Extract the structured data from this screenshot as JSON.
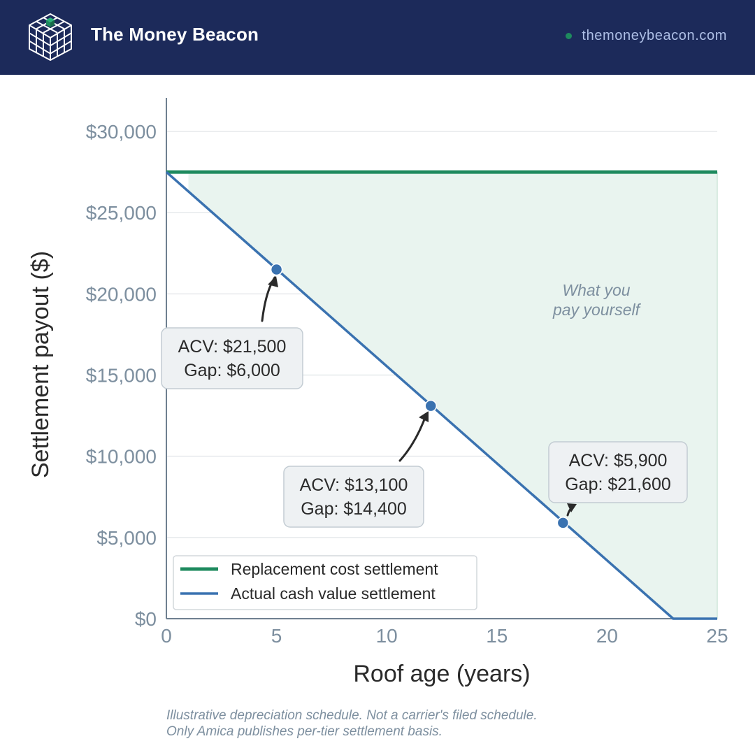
{
  "header": {
    "brand": "The Money Beacon",
    "site": "themoneybeacon.com",
    "background_color": "#1c2a5a",
    "accent_color": "#1e8a5e",
    "logo_icon": "isometric-cube-grid-icon"
  },
  "chart_data": {
    "type": "line",
    "xlabel": "Roof age (years)",
    "ylabel": "Settlement payout ($)",
    "xlim": [
      0,
      25
    ],
    "ylim": [
      0,
      32000
    ],
    "x_ticks": [
      0,
      5,
      10,
      15,
      20,
      25
    ],
    "x_tick_labels": [
      "0",
      "5",
      "10",
      "15",
      "20",
      "25"
    ],
    "y_ticks": [
      0,
      5000,
      10000,
      15000,
      20000,
      25000,
      30000
    ],
    "y_tick_labels": [
      "$0",
      "$5,000",
      "$10,000",
      "$15,000",
      "$20,000",
      "$25,000",
      "$30,000"
    ],
    "grid": "horizontal",
    "legend_position": "bottom-left",
    "series": [
      {
        "name": "Replacement cost settlement",
        "color": "#1e8a5e",
        "x": [
          0,
          25
        ],
        "y": [
          27500,
          27500
        ]
      },
      {
        "name": "Actual cash value settlement",
        "color": "#3a72b0",
        "x": [
          0,
          23,
          25
        ],
        "y": [
          27500,
          0,
          0
        ]
      }
    ],
    "shaded_area": {
      "label_line1": "What you",
      "label_line2": "pay yourself",
      "color": "#e9f4ef",
      "from_x": 1,
      "to_x": 25
    },
    "points": [
      {
        "x": 5,
        "y": 21500,
        "line1": "ACV: $21,500",
        "line2": "Gap: $6,000"
      },
      {
        "x": 12,
        "y": 13100,
        "line1": "ACV: $13,100",
        "line2": "Gap: $14,400"
      },
      {
        "x": 18,
        "y": 5900,
        "line1": "ACV: $5,900",
        "line2": "Gap: $21,600"
      }
    ]
  },
  "footnote": {
    "line1": "Illustrative depreciation schedule. Not a carrier's filed schedule.",
    "line2": "Only Amica publishes per-tier settlement basis."
  }
}
